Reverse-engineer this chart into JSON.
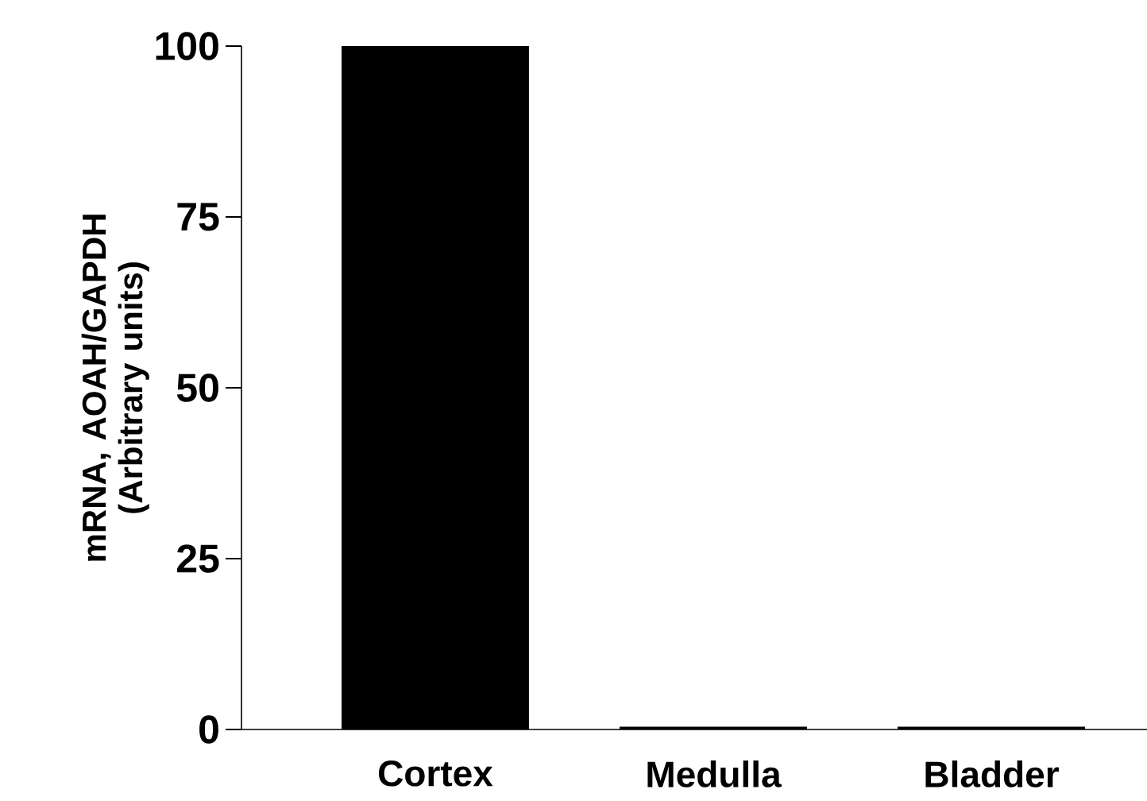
{
  "chart_data": {
    "type": "bar",
    "ylabel": "mRNA, AOAH/GAPDH (Arbitrary units)",
    "categories": [
      "Cortex",
      "Medulla",
      "Bladder"
    ],
    "values": [
      100,
      0.4,
      0.4
    ],
    "color": "#000000",
    "ylim": [
      0,
      100
    ],
    "yticks": [
      0,
      25,
      50,
      75,
      100
    ]
  }
}
